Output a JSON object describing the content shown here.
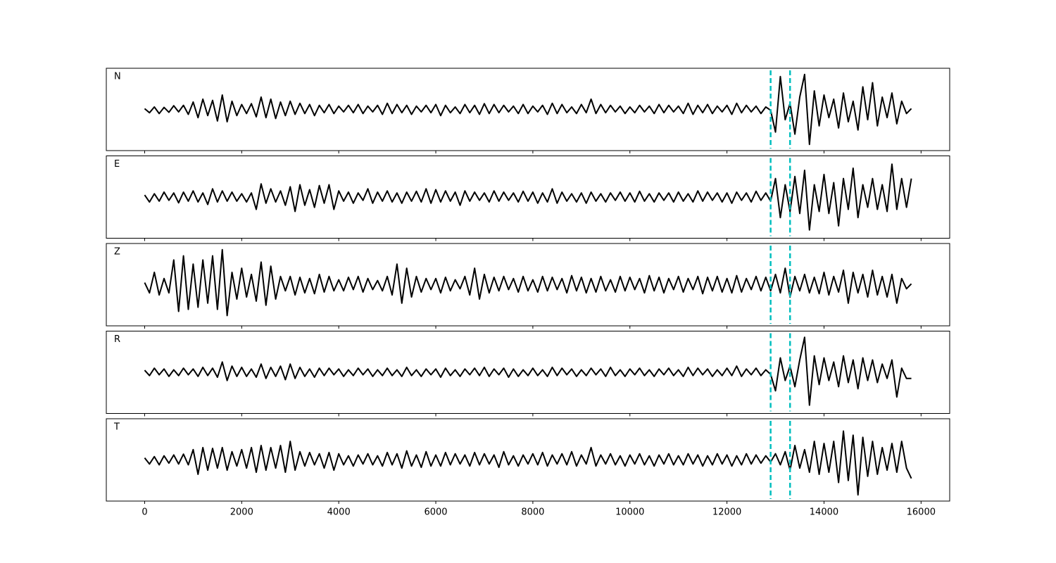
{
  "chart_data": {
    "type": "line",
    "x": [
      0,
      100,
      200,
      300,
      400,
      500,
      600,
      700,
      800,
      900,
      1000,
      1100,
      1200,
      1300,
      1400,
      1500,
      1600,
      1700,
      1800,
      1900,
      2000,
      2100,
      2200,
      2300,
      2400,
      2500,
      2600,
      2700,
      2800,
      2900,
      3000,
      3100,
      3200,
      3300,
      3400,
      3500,
      3600,
      3700,
      3800,
      3900,
      4000,
      4100,
      4200,
      4300,
      4400,
      4500,
      4600,
      4700,
      4800,
      4900,
      5000,
      5100,
      5200,
      5300,
      5400,
      5500,
      5600,
      5700,
      5800,
      5900,
      6000,
      6100,
      6200,
      6300,
      6400,
      6500,
      6600,
      6700,
      6800,
      6900,
      7000,
      7100,
      7200,
      7300,
      7400,
      7500,
      7600,
      7700,
      7800,
      7900,
      8000,
      8100,
      8200,
      8300,
      8400,
      8500,
      8600,
      8700,
      8800,
      8900,
      9000,
      9100,
      9200,
      9300,
      9400,
      9500,
      9600,
      9700,
      9800,
      9900,
      10000,
      10100,
      10200,
      10300,
      10400,
      10500,
      10600,
      10700,
      10800,
      10900,
      11000,
      11100,
      11200,
      11300,
      11400,
      11500,
      11600,
      11700,
      11800,
      11900,
      12000,
      12100,
      12200,
      12300,
      12400,
      12500,
      12600,
      12700,
      12800,
      12900,
      13000,
      13100,
      13200,
      13300,
      13400,
      13500,
      13600,
      13700,
      13800,
      13900,
      14000,
      14100,
      14200,
      14300,
      14400,
      14500,
      14600,
      14700,
      14800,
      14900,
      15000,
      15100,
      15200,
      15300,
      15400,
      15500,
      15600,
      15700,
      15800
    ],
    "xlim": [
      -790,
      16590
    ],
    "xticks": [
      0,
      2000,
      4000,
      6000,
      8000,
      10000,
      12000,
      14000,
      16000
    ],
    "ylim": [
      -1,
      1
    ],
    "markers": {
      "values": [
        12900,
        13300
      ],
      "color": "#00bfbf"
    },
    "series": [
      {
        "name": "N",
        "color": "#000000",
        "values": [
          0.02,
          -0.08,
          0.06,
          -0.1,
          0.05,
          -0.07,
          0.09,
          -0.06,
          0.1,
          -0.12,
          0.18,
          -0.2,
          0.25,
          -0.15,
          0.22,
          -0.28,
          0.35,
          -0.3,
          0.2,
          -0.15,
          0.12,
          -0.1,
          0.14,
          -0.18,
          0.3,
          -0.2,
          0.25,
          -0.22,
          0.18,
          -0.15,
          0.2,
          -0.12,
          0.15,
          -0.1,
          0.12,
          -0.15,
          0.1,
          -0.08,
          0.12,
          -0.1,
          0.08,
          -0.06,
          0.1,
          -0.08,
          0.12,
          -0.1,
          0.08,
          -0.06,
          0.1,
          -0.12,
          0.15,
          -0.1,
          0.12,
          -0.08,
          0.1,
          -0.12,
          0.08,
          -0.06,
          0.1,
          -0.08,
          0.12,
          -0.15,
          0.1,
          -0.08,
          0.06,
          -0.1,
          0.12,
          -0.08,
          0.1,
          -0.12,
          0.14,
          -0.1,
          0.12,
          -0.08,
          0.1,
          -0.06,
          0.08,
          -0.1,
          0.12,
          -0.1,
          0.08,
          -0.06,
          0.1,
          -0.12,
          0.15,
          -0.1,
          0.12,
          -0.08,
          0.06,
          -0.1,
          0.12,
          -0.08,
          0.25,
          -0.1,
          0.12,
          -0.08,
          0.1,
          -0.06,
          0.08,
          -0.1,
          0.06,
          -0.08,
          0.1,
          -0.06,
          0.08,
          -0.1,
          0.12,
          -0.08,
          0.1,
          -0.06,
          0.08,
          -0.1,
          0.15,
          -0.12,
          0.1,
          -0.08,
          0.12,
          -0.1,
          0.08,
          -0.06,
          0.1,
          -0.12,
          0.15,
          -0.08,
          0.1,
          -0.06,
          0.08,
          -0.1,
          0.06,
          -0.02,
          -0.55,
          0.8,
          -0.25,
          0.15,
          -0.6,
          0.3,
          0.85,
          -0.85,
          0.45,
          -0.4,
          0.35,
          -0.2,
          0.25,
          -0.45,
          0.4,
          -0.3,
          0.2,
          -0.5,
          0.55,
          -0.25,
          0.65,
          -0.4,
          0.3,
          -0.2,
          0.4,
          -0.35,
          0.2,
          -0.1,
          0.02
        ]
      },
      {
        "name": "E",
        "color": "#000000",
        "values": [
          0.05,
          -0.12,
          0.08,
          -0.1,
          0.12,
          -0.08,
          0.1,
          -0.14,
          0.12,
          -0.1,
          0.15,
          -0.12,
          0.1,
          -0.18,
          0.2,
          -0.12,
          0.15,
          -0.1,
          0.12,
          -0.1,
          0.08,
          -0.12,
          0.1,
          -0.3,
          0.32,
          -0.15,
          0.2,
          -0.12,
          0.15,
          -0.2,
          0.25,
          -0.35,
          0.3,
          -0.2,
          0.18,
          -0.25,
          0.28,
          -0.15,
          0.3,
          -0.3,
          0.15,
          -0.1,
          0.12,
          -0.15,
          0.1,
          -0.08,
          0.2,
          -0.15,
          0.12,
          -0.1,
          0.15,
          -0.12,
          0.1,
          -0.15,
          0.12,
          -0.1,
          0.14,
          -0.12,
          0.2,
          -0.15,
          0.18,
          -0.12,
          0.15,
          -0.1,
          0.12,
          -0.2,
          0.15,
          -0.1,
          0.12,
          -0.08,
          0.1,
          -0.12,
          0.15,
          -0.1,
          0.12,
          -0.08,
          0.1,
          -0.12,
          0.14,
          -0.1,
          0.12,
          -0.15,
          0.1,
          -0.12,
          0.2,
          -0.15,
          0.12,
          -0.1,
          0.08,
          -0.12,
          0.1,
          -0.15,
          0.12,
          -0.1,
          0.08,
          -0.12,
          0.1,
          -0.08,
          0.12,
          -0.1,
          0.1,
          -0.12,
          0.14,
          -0.1,
          0.08,
          -0.12,
          0.1,
          -0.08,
          0.1,
          -0.12,
          0.12,
          -0.1,
          0.08,
          -0.12,
          0.15,
          -0.1,
          0.12,
          -0.08,
          0.1,
          -0.12,
          0.1,
          -0.15,
          0.12,
          -0.08,
          0.1,
          -0.12,
          0.14,
          -0.08,
          0.1,
          -0.1,
          0.45,
          -0.5,
          0.3,
          -0.35,
          0.5,
          -0.4,
          0.65,
          -0.8,
          0.3,
          -0.35,
          0.55,
          -0.4,
          0.35,
          -0.7,
          0.45,
          -0.3,
          0.7,
          -0.5,
          0.3,
          -0.25,
          0.45,
          -0.3,
          0.3,
          -0.35,
          0.8,
          -0.3,
          0.45,
          -0.25,
          0.45
        ]
      },
      {
        "name": "Z",
        "color": "#000000",
        "values": [
          0.05,
          -0.2,
          0.3,
          -0.25,
          0.15,
          -0.2,
          0.6,
          -0.65,
          0.7,
          -0.6,
          0.5,
          -0.55,
          0.6,
          -0.45,
          0.7,
          -0.6,
          0.85,
          -0.75,
          0.3,
          -0.35,
          0.4,
          -0.3,
          0.25,
          -0.4,
          0.55,
          -0.5,
          0.45,
          -0.35,
          0.2,
          -0.15,
          0.2,
          -0.25,
          0.18,
          -0.2,
          0.15,
          -0.22,
          0.25,
          -0.18,
          0.2,
          -0.15,
          0.12,
          -0.15,
          0.18,
          -0.12,
          0.2,
          -0.18,
          0.15,
          -0.12,
          0.1,
          -0.15,
          0.2,
          -0.25,
          0.5,
          -0.45,
          0.4,
          -0.3,
          0.2,
          -0.18,
          0.15,
          -0.12,
          0.15,
          -0.2,
          0.18,
          -0.15,
          0.12,
          -0.1,
          0.2,
          -0.25,
          0.4,
          -0.35,
          0.25,
          -0.2,
          0.18,
          -0.15,
          0.2,
          -0.12,
          0.15,
          -0.18,
          0.2,
          -0.15,
          0.12,
          -0.18,
          0.2,
          -0.15,
          0.18,
          -0.12,
          0.15,
          -0.2,
          0.22,
          -0.15,
          0.18,
          -0.2,
          0.15,
          -0.18,
          0.2,
          -0.15,
          0.12,
          -0.18,
          0.2,
          -0.15,
          0.18,
          -0.12,
          0.15,
          -0.2,
          0.22,
          -0.15,
          0.18,
          -0.2,
          0.15,
          -0.12,
          0.2,
          -0.18,
          0.15,
          -0.12,
          0.2,
          -0.22,
          0.18,
          -0.15,
          0.2,
          -0.18,
          0.15,
          -0.2,
          0.22,
          -0.18,
          0.15,
          -0.12,
          0.2,
          -0.15,
          0.18,
          -0.15,
          0.25,
          -0.2,
          0.4,
          -0.3,
          0.2,
          -0.15,
          0.25,
          -0.2,
          0.18,
          -0.22,
          0.3,
          -0.25,
          0.2,
          -0.18,
          0.35,
          -0.45,
          0.3,
          -0.2,
          0.25,
          -0.3,
          0.35,
          -0.25,
          0.2,
          -0.3,
          0.25,
          -0.45,
          0.15,
          -0.1,
          0.02
        ]
      },
      {
        "name": "R",
        "color": "#000000",
        "values": [
          0.05,
          -0.08,
          0.1,
          -0.06,
          0.08,
          -0.1,
          0.06,
          -0.08,
          0.1,
          -0.06,
          0.08,
          -0.1,
          0.12,
          -0.08,
          0.1,
          -0.12,
          0.25,
          -0.2,
          0.15,
          -0.1,
          0.12,
          -0.1,
          0.08,
          -0.12,
          0.2,
          -0.15,
          0.12,
          -0.1,
          0.15,
          -0.18,
          0.2,
          -0.15,
          0.12,
          -0.1,
          0.08,
          -0.12,
          0.1,
          -0.08,
          0.1,
          -0.06,
          0.08,
          -0.1,
          0.06,
          -0.08,
          0.1,
          -0.06,
          0.08,
          -0.1,
          0.06,
          -0.08,
          0.1,
          -0.08,
          0.06,
          -0.1,
          0.12,
          -0.08,
          0.06,
          -0.1,
          0.08,
          -0.06,
          0.08,
          -0.12,
          0.1,
          -0.08,
          0.06,
          -0.1,
          0.08,
          -0.06,
          0.1,
          -0.08,
          0.12,
          -0.1,
          0.08,
          -0.06,
          0.1,
          -0.12,
          0.08,
          -0.1,
          0.06,
          -0.08,
          0.1,
          -0.08,
          0.06,
          -0.1,
          0.12,
          -0.08,
          0.1,
          -0.06,
          0.08,
          -0.1,
          0.06,
          -0.08,
          0.1,
          -0.06,
          0.08,
          -0.1,
          0.12,
          -0.08,
          0.06,
          -0.1,
          0.08,
          -0.06,
          0.1,
          -0.08,
          0.06,
          -0.1,
          0.08,
          -0.06,
          0.1,
          -0.08,
          0.06,
          -0.1,
          0.12,
          -0.08,
          0.1,
          -0.06,
          0.08,
          -0.1,
          0.06,
          -0.08,
          0.1,
          -0.08,
          0.15,
          -0.1,
          0.08,
          -0.06,
          0.1,
          -0.08,
          0.06,
          -0.05,
          -0.45,
          0.35,
          -0.2,
          0.15,
          -0.35,
          0.3,
          0.85,
          -0.8,
          0.4,
          -0.3,
          0.35,
          -0.2,
          0.25,
          -0.35,
          0.4,
          -0.25,
          0.3,
          -0.4,
          0.35,
          -0.2,
          0.3,
          -0.25,
          0.2,
          -0.15,
          0.3,
          -0.6,
          0.1,
          -0.15,
          -0.15
        ]
      },
      {
        "name": "T",
        "color": "#000000",
        "values": [
          0.05,
          -0.1,
          0.08,
          -0.12,
          0.1,
          -0.08,
          0.12,
          -0.1,
          0.14,
          -0.12,
          0.25,
          -0.35,
          0.3,
          -0.25,
          0.28,
          -0.2,
          0.3,
          -0.25,
          0.2,
          -0.15,
          0.25,
          -0.2,
          0.3,
          -0.3,
          0.35,
          -0.25,
          0.3,
          -0.2,
          0.35,
          -0.3,
          0.45,
          -0.25,
          0.2,
          -0.15,
          0.18,
          -0.12,
          0.15,
          -0.2,
          0.18,
          -0.25,
          0.15,
          -0.12,
          0.1,
          -0.15,
          0.12,
          -0.1,
          0.15,
          -0.12,
          0.1,
          -0.15,
          0.18,
          -0.12,
          0.15,
          -0.2,
          0.22,
          -0.15,
          0.12,
          -0.18,
          0.2,
          -0.15,
          0.12,
          -0.15,
          0.18,
          -0.12,
          0.15,
          -0.1,
          0.12,
          -0.15,
          0.18,
          -0.12,
          0.15,
          -0.1,
          0.12,
          -0.18,
          0.2,
          -0.12,
          0.1,
          -0.15,
          0.12,
          -0.1,
          0.15,
          -0.12,
          0.18,
          -0.15,
          0.12,
          -0.1,
          0.15,
          -0.12,
          0.2,
          -0.15,
          0.12,
          -0.1,
          0.3,
          -0.15,
          0.12,
          -0.1,
          0.15,
          -0.12,
          0.1,
          -0.15,
          0.12,
          -0.1,
          0.15,
          -0.12,
          0.1,
          -0.15,
          0.12,
          -0.1,
          0.15,
          -0.12,
          0.1,
          -0.12,
          0.15,
          -0.1,
          0.12,
          -0.15,
          0.1,
          -0.12,
          0.15,
          -0.1,
          0.12,
          -0.15,
          0.1,
          -0.12,
          0.15,
          -0.1,
          0.12,
          -0.08,
          0.1,
          -0.05,
          0.15,
          -0.12,
          0.2,
          -0.25,
          0.35,
          -0.2,
          0.25,
          -0.3,
          0.45,
          -0.35,
          0.4,
          -0.3,
          0.45,
          -0.55,
          0.7,
          -0.5,
          0.6,
          -0.85,
          0.55,
          -0.4,
          0.45,
          -0.35,
          0.3,
          -0.25,
          0.4,
          -0.3,
          0.45,
          -0.2,
          -0.45
        ]
      }
    ]
  }
}
